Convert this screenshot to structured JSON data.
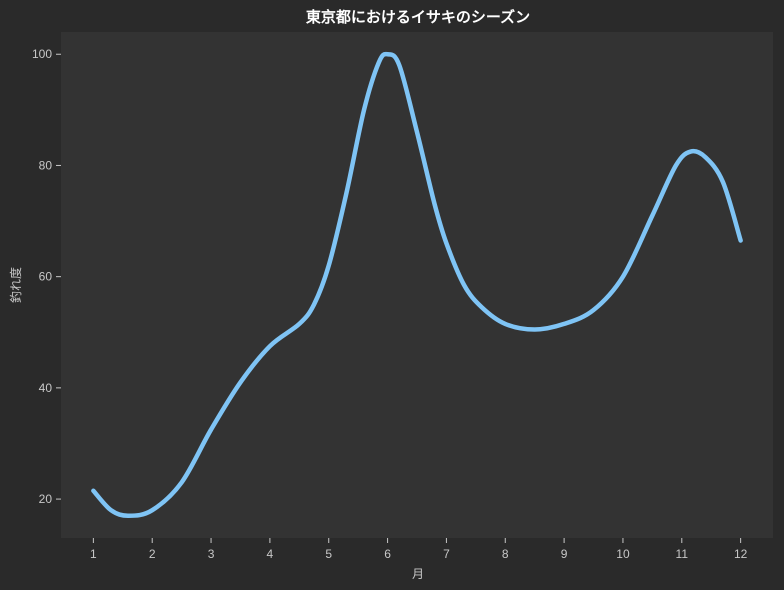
{
  "chart_data": {
    "type": "line",
    "title": "東京都におけるイサキのシーズン",
    "xlabel": "月",
    "ylabel": "釣れ度",
    "x": [
      1,
      2,
      3,
      4,
      5,
      6,
      7,
      8,
      9,
      10,
      11,
      12
    ],
    "x_tick_labels": [
      "1",
      "2",
      "3",
      "4",
      "5",
      "6",
      "7",
      "8",
      "9",
      "10",
      "11",
      "12"
    ],
    "y_ticks": [
      20,
      40,
      60,
      80,
      100
    ],
    "y_tick_labels": [
      "20",
      "40",
      "60",
      "80",
      "100"
    ],
    "xlim": [
      0.45,
      12.55
    ],
    "ylim": [
      13,
      104
    ],
    "grid": false,
    "legend": "none",
    "series": [
      {
        "color": "#7fc4f5",
        "points": [
          [
            1.0,
            21.5
          ],
          [
            1.3,
            18.0
          ],
          [
            1.6,
            17.0
          ],
          [
            2.0,
            18.0
          ],
          [
            2.5,
            23.0
          ],
          [
            3.0,
            32.5
          ],
          [
            3.5,
            41.0
          ],
          [
            4.0,
            47.5
          ],
          [
            4.5,
            51.5
          ],
          [
            4.75,
            55.0
          ],
          [
            5.0,
            62.0
          ],
          [
            5.3,
            75.0
          ],
          [
            5.6,
            90.0
          ],
          [
            5.85,
            98.5
          ],
          [
            6.0,
            100.0
          ],
          [
            6.2,
            98.0
          ],
          [
            6.5,
            86.0
          ],
          [
            6.8,
            73.0
          ],
          [
            7.0,
            66.0
          ],
          [
            7.3,
            58.5
          ],
          [
            7.6,
            54.5
          ],
          [
            8.0,
            51.5
          ],
          [
            8.5,
            50.5
          ],
          [
            9.0,
            51.5
          ],
          [
            9.5,
            54.0
          ],
          [
            10.0,
            60.0
          ],
          [
            10.5,
            71.0
          ],
          [
            10.9,
            80.0
          ],
          [
            11.15,
            82.5
          ],
          [
            11.4,
            81.5
          ],
          [
            11.7,
            77.0
          ],
          [
            12.0,
            66.5
          ]
        ]
      }
    ]
  }
}
